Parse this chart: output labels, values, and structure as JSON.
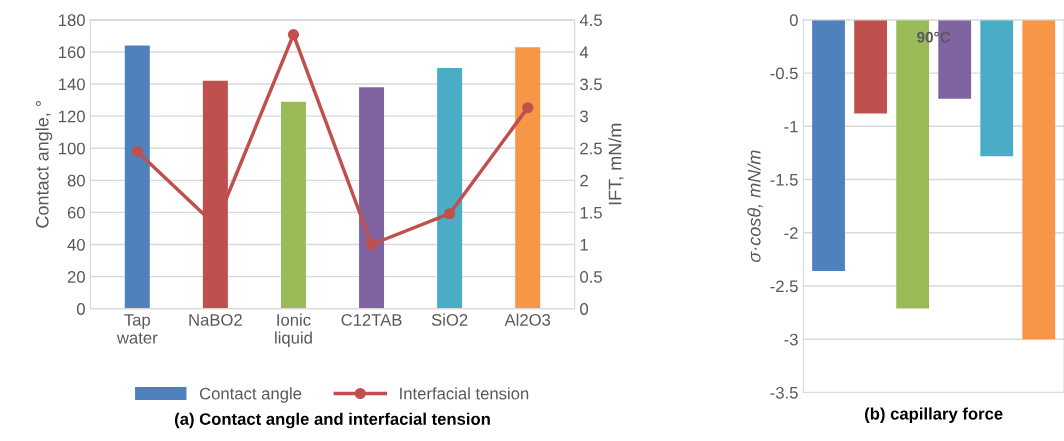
{
  "chart_data": [
    {
      "type": "bar",
      "title": "(a) Contact angle and interfacial tension",
      "ylabel": "Contact angle, °",
      "y2label": "IFT, mN/m",
      "categories": [
        "Tap\nwater",
        "NaBO2",
        "Ionic\nliquid",
        "C12TAB",
        "SiO2",
        "Al2O3"
      ],
      "series": [
        {
          "name": "Contact angle",
          "type": "bar",
          "color": "#4f81bd",
          "colors": [
            "#4f81bd",
            "#c0504d",
            "#9bbb59",
            "#8064a2",
            "#4bacc6",
            "#f79646"
          ],
          "values": [
            164,
            142,
            129,
            138,
            150,
            163
          ]
        },
        {
          "name": "Interfacial tension",
          "type": "line",
          "axis": "y2",
          "color": "#c0504d",
          "values": [
            2.45,
            1.3,
            4.27,
            1.0,
            1.48,
            3.13
          ]
        }
      ],
      "ylim": [
        0,
        180
      ],
      "yticks": [
        0,
        20,
        40,
        60,
        80,
        100,
        120,
        140,
        160,
        180
      ],
      "y2lim": [
        0,
        4.5
      ],
      "y2ticks": [
        0,
        0.5,
        1,
        1.5,
        2,
        2.5,
        3,
        3.5,
        4,
        4.5
      ],
      "grid": "y",
      "legend": "bottom",
      "marker": "circle",
      "line_style": "solid"
    },
    {
      "type": "bar",
      "title": "(b) capillary force",
      "ylabel": "σ·cosθ, mN/m",
      "categories": [
        null,
        null,
        null,
        null,
        null,
        null
      ],
      "colors": [
        "#4f81bd",
        "#c0504d",
        "#9bbb59",
        "#8064a2",
        "#4bacc6",
        "#f79646"
      ],
      "values": [
        -2.36,
        -0.88,
        -2.71,
        -0.74,
        -1.28,
        -3.0
      ],
      "ylim": [
        -3.5,
        0
      ],
      "yticks": [
        -3.5,
        -3,
        -2.5,
        -2,
        -1.5,
        -1,
        -0.5,
        0
      ],
      "grid": "y",
      "annotations": [
        "90°C"
      ]
    }
  ]
}
